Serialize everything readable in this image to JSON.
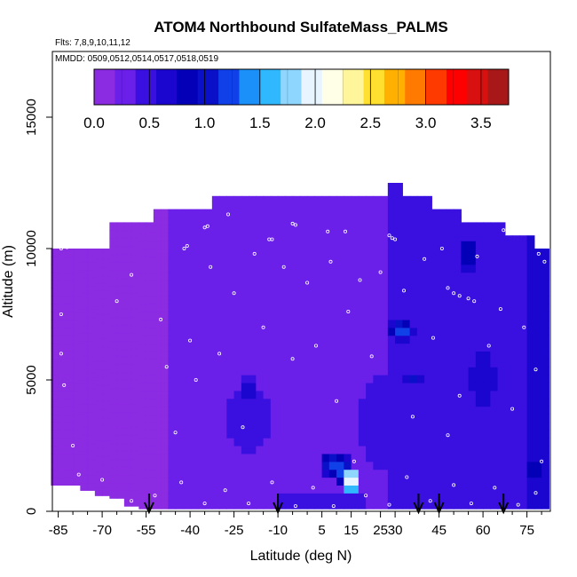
{
  "chart_data": {
    "type": "heatmap",
    "title": "ATOM4 Northbound SulfateMass_PALMS",
    "flights_note": "Flts: 7,8,9,10,11,12",
    "dates_note": "MMDD: 0509,0512,0514,0517,0518,0519",
    "xlabel": "Latitude (deg N)",
    "ylabel": "Altitude (m)",
    "xlim": [
      -87,
      83
    ],
    "ylim": [
      0,
      17500
    ],
    "x_ticks": [
      -85,
      -70,
      -55,
      -40,
      -25,
      -10,
      5,
      15,
      25,
      30,
      45,
      60,
      75
    ],
    "x_tick_labels": [
      "-85",
      "-70",
      "-55",
      "-40",
      "-25",
      "-10",
      "5",
      "15",
      "25",
      "30",
      "45",
      "60",
      "75"
    ],
    "x_minor_ticks": [
      -80,
      -75,
      -65,
      -60,
      -50,
      -45,
      -35,
      -30,
      -20,
      -15,
      -5,
      0,
      10,
      20,
      35,
      40,
      50,
      55,
      65,
      70,
      80
    ],
    "y_ticks": [
      0,
      5000,
      10000,
      15000
    ],
    "y_tick_labels": [
      "0",
      "5000",
      "10000",
      "15000"
    ],
    "colorbar": {
      "ticks": [
        0.0,
        0.5,
        1.0,
        1.5,
        2.0,
        2.5,
        3.0,
        3.5
      ],
      "tick_labels": [
        "0.0",
        "0.5",
        "1.0",
        "1.5",
        "2.0",
        "2.5",
        "3.0",
        "3.5"
      ],
      "range": [
        0,
        3.75
      ],
      "colors": [
        "#8b2be2",
        "#6a20e8",
        "#3a10e0",
        "#1a06cf",
        "#0400b8",
        "#0a10c8",
        "#1040e8",
        "#1a90f8",
        "#30b8ff",
        "#8fd6ff",
        "#e8f4ff",
        "#ffffe8",
        "#fff59a",
        "#ffe030",
        "#ffb000",
        "#ff7a00",
        "#ff3a00",
        "#ff0000",
        "#d81010",
        "#a81818"
      ]
    },
    "arrows_lat": [
      -54,
      -10,
      38,
      45,
      67
    ],
    "lat_columns": [
      -85,
      -80,
      -75,
      -70,
      -65,
      -60,
      -55,
      -50,
      -45,
      -40,
      -35,
      -30,
      -25,
      -20,
      -15,
      -10,
      -5,
      0,
      5,
      10,
      15,
      20,
      25,
      30,
      35,
      40,
      45,
      50,
      55,
      60,
      65,
      70,
      75,
      80
    ],
    "column_top_alt": [
      10000,
      10000,
      10000,
      10000,
      11000,
      11000,
      11000,
      11500,
      11500,
      11500,
      11500,
      12000,
      12000,
      12000,
      12000,
      12000,
      12000,
      12000,
      12000,
      12000,
      12000,
      12000,
      12000,
      12500,
      12000,
      12000,
      11500,
      11500,
      11000,
      11000,
      11000,
      10500,
      10500,
      10000
    ],
    "column_bottom_alt": [
      1000,
      1000,
      800,
      600,
      500,
      200,
      100,
      100,
      100,
      100,
      100,
      100,
      100,
      100,
      100,
      100,
      100,
      100,
      100,
      100,
      100,
      100,
      100,
      100,
      100,
      100,
      100,
      100,
      100,
      100,
      100,
      100,
      100,
      100
    ],
    "base_field": [
      {
        "lat": -85,
        "value": 0.12
      },
      {
        "lat": -55,
        "value": 0.14
      },
      {
        "lat": -40,
        "value": 0.25
      },
      {
        "lat": -25,
        "value": 0.3
      },
      {
        "lat": -10,
        "value": 0.25
      },
      {
        "lat": 5,
        "value": 0.3
      },
      {
        "lat": 20,
        "value": 0.35
      },
      {
        "lat": 35,
        "value": 0.4
      },
      {
        "lat": 50,
        "value": 0.45
      },
      {
        "lat": 65,
        "value": 0.5
      },
      {
        "lat": 80,
        "value": 0.6
      }
    ],
    "hotspots": [
      {
        "lat": 15,
        "alt": 1200,
        "lat_halfwidth": 1.8,
        "alt_halfwidth": 700,
        "value": 2.6
      },
      {
        "lat": 12,
        "alt": 1600,
        "lat_halfwidth": 3,
        "alt_halfwidth": 600,
        "value": 1.4
      },
      {
        "lat": 8,
        "alt": 1800,
        "lat_halfwidth": 3.5,
        "alt_halfwidth": 500,
        "value": 1.2
      },
      {
        "lat": 32,
        "alt": 6900,
        "lat_halfwidth": 4.5,
        "alt_halfwidth": 400,
        "value": 1.3
      },
      {
        "lat": 36,
        "alt": 5000,
        "lat_halfwidth": 3,
        "alt_halfwidth": 250,
        "value": 1.1
      },
      {
        "lat": 55,
        "alt": 9800,
        "lat_halfwidth": 3,
        "alt_halfwidth": 800,
        "value": 0.95
      },
      {
        "lat": 77,
        "alt": 1600,
        "lat_halfwidth": 3,
        "alt_halfwidth": 600,
        "value": 1.0
      },
      {
        "lat": -20,
        "alt": 4600,
        "lat_halfwidth": 3,
        "alt_halfwidth": 500,
        "value": 0.85
      }
    ],
    "dark_regions": [
      {
        "lat": -20,
        "alt": 3500,
        "lat_halfwidth": 10,
        "alt_halfwidth": 1500,
        "value": 0.5
      },
      {
        "lat": 25,
        "alt": 3500,
        "lat_halfwidth": 8,
        "alt_halfwidth": 2000,
        "value": 0.55
      },
      {
        "lat": 60,
        "alt": 5000,
        "lat_halfwidth": 10,
        "alt_halfwidth": 3000,
        "value": 0.6
      },
      {
        "lat": 5,
        "alt": 400,
        "lat_halfwidth": 20,
        "alt_halfwidth": 400,
        "value": 0.5
      }
    ],
    "sample_points": [
      {
        "lat": -84,
        "alt": 10000
      },
      {
        "lat": -82,
        "alt": 10050
      },
      {
        "lat": -80,
        "alt": 10100
      },
      {
        "lat": -76,
        "alt": 10300
      },
      {
        "lat": -74,
        "alt": 10450
      },
      {
        "lat": -72,
        "alt": 10500
      },
      {
        "lat": -70,
        "alt": 10550
      },
      {
        "lat": -67,
        "alt": 11300
      },
      {
        "lat": -65,
        "alt": 11400
      },
      {
        "lat": -62,
        "alt": 11450
      },
      {
        "lat": -60,
        "alt": 11500
      },
      {
        "lat": -42,
        "alt": 10000
      },
      {
        "lat": -41,
        "alt": 10100
      },
      {
        "lat": -35,
        "alt": 10800
      },
      {
        "lat": -34,
        "alt": 10850
      },
      {
        "lat": -27,
        "alt": 11300
      },
      {
        "lat": -13,
        "alt": 10350
      },
      {
        "lat": -12,
        "alt": 10350
      },
      {
        "lat": -5,
        "alt": 10950
      },
      {
        "lat": -4,
        "alt": 10900
      },
      {
        "lat": 7,
        "alt": 10650
      },
      {
        "lat": 13,
        "alt": 10650
      },
      {
        "lat": 28,
        "alt": 10500
      },
      {
        "lat": 29,
        "alt": 10400
      },
      {
        "lat": 30,
        "alt": 10350
      },
      {
        "lat": 46,
        "alt": 10000
      },
      {
        "lat": 48,
        "alt": 8500
      },
      {
        "lat": 50,
        "alt": 8300
      },
      {
        "lat": 52,
        "alt": 8200
      },
      {
        "lat": 55,
        "alt": 8100
      },
      {
        "lat": 57,
        "alt": 8000
      },
      {
        "lat": 67,
        "alt": 10700
      },
      {
        "lat": 70,
        "alt": 10800
      },
      {
        "lat": 73,
        "alt": 11000
      },
      {
        "lat": 75,
        "alt": 10650
      },
      {
        "lat": 79,
        "alt": 9800
      },
      {
        "lat": 81,
        "alt": 9500
      },
      {
        "lat": -84,
        "alt": 7500
      },
      {
        "lat": -84,
        "alt": 6000
      },
      {
        "lat": -83,
        "alt": 4800
      },
      {
        "lat": -80,
        "alt": 2500
      },
      {
        "lat": -78,
        "alt": 1400
      },
      {
        "lat": -65,
        "alt": 8000
      },
      {
        "lat": -60,
        "alt": 9000
      },
      {
        "lat": -50,
        "alt": 7300
      },
      {
        "lat": -48,
        "alt": 5500
      },
      {
        "lat": -45,
        "alt": 3000
      },
      {
        "lat": -40,
        "alt": 6500
      },
      {
        "lat": -38,
        "alt": 5000
      },
      {
        "lat": -33,
        "alt": 9300
      },
      {
        "lat": -30,
        "alt": 6000
      },
      {
        "lat": -25,
        "alt": 8300
      },
      {
        "lat": -22,
        "alt": 3200
      },
      {
        "lat": -18,
        "alt": 9800
      },
      {
        "lat": -15,
        "alt": 7000
      },
      {
        "lat": -8,
        "alt": 9300
      },
      {
        "lat": -5,
        "alt": 5800
      },
      {
        "lat": 0,
        "alt": 8700
      },
      {
        "lat": 3,
        "alt": 6300
      },
      {
        "lat": 8,
        "alt": 9500
      },
      {
        "lat": 10,
        "alt": 4200
      },
      {
        "lat": 14,
        "alt": 7600
      },
      {
        "lat": 18,
        "alt": 8800
      },
      {
        "lat": 22,
        "alt": 5900
      },
      {
        "lat": 25,
        "alt": 9100
      },
      {
        "lat": 33,
        "alt": 8400
      },
      {
        "lat": 36,
        "alt": 3600
      },
      {
        "lat": 40,
        "alt": 9600
      },
      {
        "lat": 43,
        "alt": 6600
      },
      {
        "lat": 48,
        "alt": 2900
      },
      {
        "lat": 52,
        "alt": 4400
      },
      {
        "lat": 58,
        "alt": 9700
      },
      {
        "lat": 62,
        "alt": 6300
      },
      {
        "lat": 66,
        "alt": 7700
      },
      {
        "lat": 70,
        "alt": 3900
      },
      {
        "lat": 74,
        "alt": 7000
      },
      {
        "lat": 78,
        "alt": 5400
      },
      {
        "lat": 80,
        "alt": 1900
      },
      {
        "lat": -70,
        "alt": 1200
      },
      {
        "lat": -60,
        "alt": 400
      },
      {
        "lat": -52,
        "alt": 600
      },
      {
        "lat": -43,
        "alt": 1100
      },
      {
        "lat": -35,
        "alt": 300
      },
      {
        "lat": -28,
        "alt": 800
      },
      {
        "lat": -20,
        "alt": 300
      },
      {
        "lat": -12,
        "alt": 1100
      },
      {
        "lat": -4,
        "alt": 200
      },
      {
        "lat": 2,
        "alt": 900
      },
      {
        "lat": 9,
        "alt": 200
      },
      {
        "lat": 16,
        "alt": 1900
      },
      {
        "lat": 20,
        "alt": 600
      },
      {
        "lat": 28,
        "alt": 250
      },
      {
        "lat": 34,
        "alt": 1300
      },
      {
        "lat": 42,
        "alt": 400
      },
      {
        "lat": 50,
        "alt": 1000
      },
      {
        "lat": 56,
        "alt": 300
      },
      {
        "lat": 64,
        "alt": 900
      },
      {
        "lat": 72,
        "alt": 250
      },
      {
        "lat": 78,
        "alt": 700
      }
    ]
  }
}
